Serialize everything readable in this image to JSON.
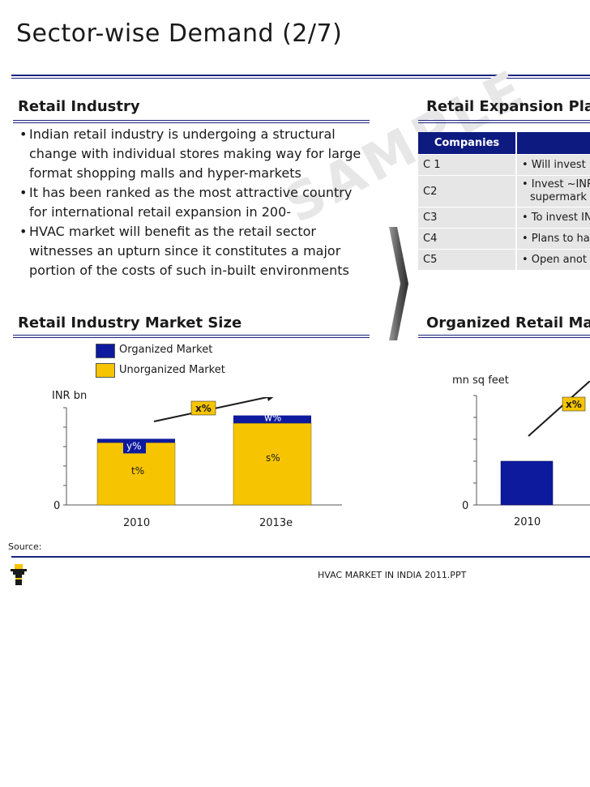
{
  "page": {
    "title": "Sector-wise Demand (2/7)",
    "watermark": "SAMPLE",
    "source": "Source:",
    "footer": "HVAC MARKET IN INDIA 2011.PPT"
  },
  "retail_industry": {
    "heading": "Retail Industry",
    "bullets": [
      "Indian retail industry is undergoing a structural change with individual stores making way for large format shopping malls and hyper-markets",
      "It has been ranked as the most attractive country for international retail expansion in 200-",
      "HVAC market will benefit as the retail sector witnesses an upturn since it constitutes a major portion of the costs of such in-built environments"
    ]
  },
  "retail_expansion": {
    "heading": "Retail Expansion Pla",
    "header": [
      "Companies",
      ""
    ],
    "rows": [
      {
        "company": "C 1",
        "plan": "• Will invest"
      },
      {
        "company": "C2",
        "plan": "• Invest ~INR",
        "plan2": "supermark"
      },
      {
        "company": "C3",
        "plan": "• To invest IN"
      },
      {
        "company": "C4",
        "plan": "• Plans to ha"
      },
      {
        "company": "C5",
        "plan": "• Open anot"
      }
    ]
  },
  "market_size": {
    "heading": "Retail Industry Market Size",
    "legend_organized": "Organized Market",
    "legend_unorganized": "Unorganized Market",
    "growth_label": "x%",
    "bar1_top_label": "y%",
    "bar1_bottom_label": "t%",
    "bar2_top_label": "w%",
    "bar2_bottom_label": "s%"
  },
  "organized_retail": {
    "heading": "Organized Retail Ma",
    "growth_label": "x%"
  },
  "chart_data": [
    {
      "type": "bar",
      "title": "Retail Industry Market Size",
      "ylabel": "INR bn",
      "categories": [
        "2010",
        "2013e"
      ],
      "series": [
        {
          "name": "Organized Market",
          "values": [
            2,
            4
          ]
        },
        {
          "name": "Unorganized Market",
          "values": [
            32,
            42
          ]
        }
      ],
      "stacked": true,
      "y_tick_zero": "0",
      "ylim": [
        0,
        50
      ],
      "colors": {
        "Organized Market": "#0d1a9e",
        "Unorganized Market": "#f6c400"
      }
    },
    {
      "type": "bar",
      "title": "Organized Retail Ma",
      "ylabel": "mn sq feet",
      "categories": [
        "2010"
      ],
      "values": [
        20
      ],
      "y_tick_zero": "0",
      "ylim": [
        0,
        50
      ],
      "color": "#0d1a9e"
    }
  ]
}
